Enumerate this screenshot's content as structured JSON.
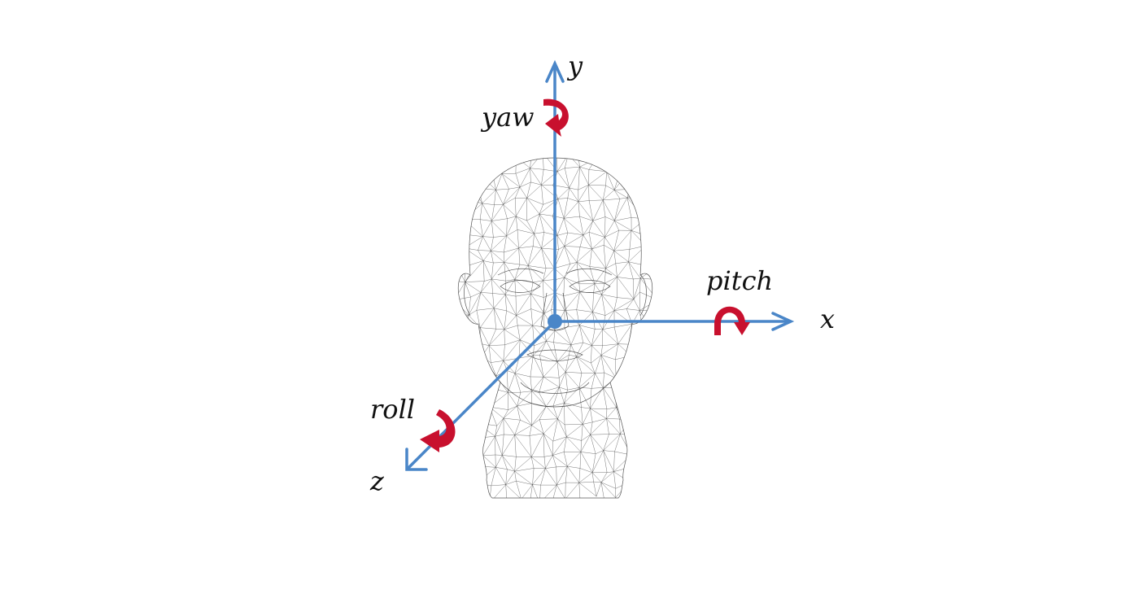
{
  "axes": {
    "x": {
      "label": "x",
      "rotation": "pitch"
    },
    "y": {
      "label": "y",
      "rotation": "yaw"
    },
    "z": {
      "label": "z",
      "rotation": "roll"
    }
  },
  "colors": {
    "axis": "#4a86c8",
    "rotation_arrow": "#c8102e",
    "mesh": "#3a3a3a",
    "background": "#ffffff",
    "text": "#111111"
  },
  "icons": {
    "head": "wireframe-head-mesh",
    "rotation": "curved-rotation-arrow"
  }
}
